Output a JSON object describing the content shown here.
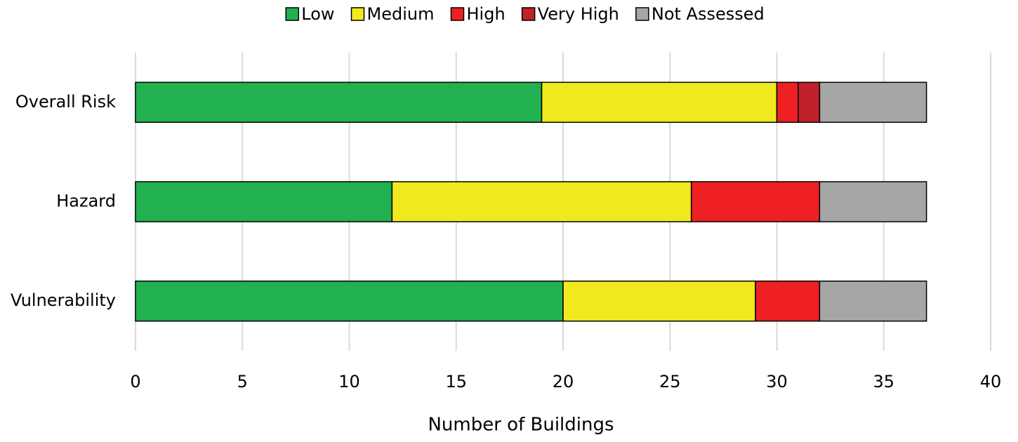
{
  "chart_data": {
    "type": "stacked-barh",
    "xlabel": "Number of Buildings",
    "categories": [
      "Overall Risk",
      "Hazard",
      "Vulnerability"
    ],
    "series": [
      {
        "name": "Low",
        "color": "#21b150",
        "values": [
          19,
          12,
          20
        ]
      },
      {
        "name": "Medium",
        "color": "#f0e91e",
        "values": [
          11,
          14,
          9
        ]
      },
      {
        "name": "High",
        "color": "#ee2024",
        "values": [
          1,
          6,
          3
        ]
      },
      {
        "name": "Very High",
        "color": "#c1212b",
        "values": [
          1,
          0,
          0
        ]
      },
      {
        "name": "Not Assessed",
        "color": "#a6a6a6",
        "values": [
          5,
          5,
          5
        ]
      }
    ],
    "xlim": [
      0,
      40
    ],
    "xticks": [
      0,
      5,
      10,
      15,
      20,
      25,
      30,
      35,
      40
    ],
    "grid": true,
    "legend": "top"
  }
}
